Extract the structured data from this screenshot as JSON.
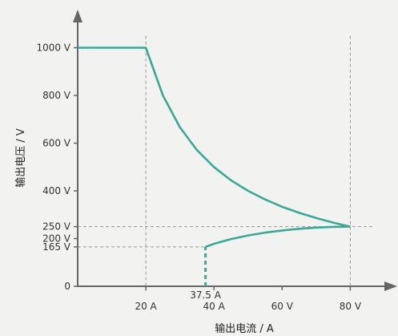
{
  "chart_data": {
    "type": "line",
    "xlabel": "输出电流 / A",
    "ylabel": "输出电压 / V",
    "xlim": [
      0,
      92
    ],
    "ylim": [
      0,
      1000
    ],
    "x_ticks": [
      {
        "value": 20,
        "label": "20 A"
      },
      {
        "value": 40,
        "label": "40 A"
      },
      {
        "value": 60,
        "label": "60 V"
      },
      {
        "value": 80,
        "label": "80 V"
      }
    ],
    "x_extra_labels": [
      {
        "value": 37.5,
        "label": "37.5 A"
      }
    ],
    "y_ticks": [
      {
        "value": 0,
        "label": "0"
      },
      {
        "value": 165,
        "label": "165 V"
      },
      {
        "value": 200,
        "label": "200 V"
      },
      {
        "value": 250,
        "label": "250 V"
      },
      {
        "value": 400,
        "label": "400 V"
      },
      {
        "value": 600,
        "label": "600 V"
      },
      {
        "value": 800,
        "label": "800 V"
      },
      {
        "value": 1000,
        "label": "1000 V"
      }
    ],
    "reference_lines": [
      {
        "axis": "x",
        "value": 20
      },
      {
        "axis": "x",
        "value": 80
      },
      {
        "axis": "y",
        "value": 250
      },
      {
        "axis": "y",
        "value": 165
      }
    ],
    "series": [
      {
        "segment": "upper",
        "points": [
          [
            0,
            1000
          ],
          [
            20,
            1000
          ],
          [
            25,
            800
          ],
          [
            30,
            667
          ],
          [
            35,
            571
          ],
          [
            40,
            500
          ],
          [
            45,
            444
          ],
          [
            50,
            400
          ],
          [
            55,
            364
          ],
          [
            60,
            333
          ],
          [
            65,
            308
          ],
          [
            70,
            286
          ],
          [
            75,
            267
          ],
          [
            80,
            250
          ]
        ]
      },
      {
        "segment": "lower",
        "points": [
          [
            37.5,
            165
          ],
          [
            40,
            178
          ],
          [
            45,
            198
          ],
          [
            50,
            213
          ],
          [
            55,
            225
          ],
          [
            60,
            234
          ],
          [
            65,
            241
          ],
          [
            70,
            246
          ],
          [
            75,
            249
          ],
          [
            80,
            250
          ]
        ]
      },
      {
        "segment": "drop",
        "dashed": true,
        "points": [
          [
            37.5,
            0
          ],
          [
            37.5,
            165
          ]
        ]
      }
    ],
    "colors": {
      "curve": "#3aa995",
      "axis": "#666666",
      "reference": "#999999"
    }
  }
}
